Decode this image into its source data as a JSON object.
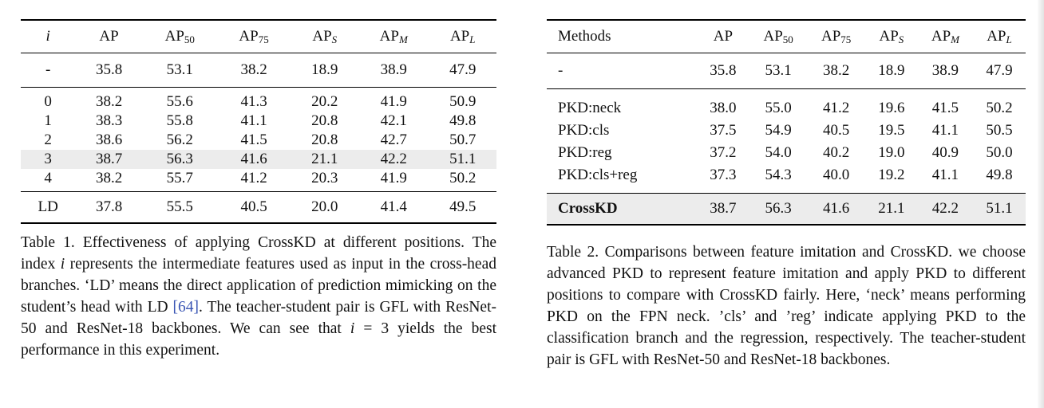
{
  "table1": {
    "headers": {
      "index": "i",
      "ap": "AP",
      "ap50": {
        "base": "AP",
        "sub": "50"
      },
      "ap75": {
        "base": "AP",
        "sub": "75"
      },
      "aps": {
        "base": "AP",
        "sub": "S"
      },
      "apm": {
        "base": "AP",
        "sub": "M"
      },
      "apl": {
        "base": "AP",
        "sub": "L"
      }
    },
    "baseline": [
      "-",
      "35.8",
      "53.1",
      "38.2",
      "18.9",
      "38.9",
      "47.9"
    ],
    "rows": [
      [
        "0",
        "38.2",
        "55.6",
        "41.3",
        "20.2",
        "41.9",
        "50.9"
      ],
      [
        "1",
        "38.3",
        "55.8",
        "41.1",
        "20.8",
        "42.1",
        "49.8"
      ],
      [
        "2",
        "38.6",
        "56.2",
        "41.5",
        "20.8",
        "42.7",
        "50.7"
      ],
      [
        "3",
        "38.7",
        "56.3",
        "41.6",
        "21.1",
        "42.2",
        "51.1"
      ],
      [
        "4",
        "38.2",
        "55.7",
        "41.2",
        "20.3",
        "41.9",
        "50.2"
      ]
    ],
    "highlight_row_color": "#ececec",
    "footer": [
      "LD",
      "37.8",
      "55.5",
      "40.5",
      "20.0",
      "41.4",
      "49.5"
    ],
    "caption": {
      "part1": "Table 1. Effectiveness of applying CrossKD at different positions. The index ",
      "var1": "i",
      "part2": " represents the intermediate features used as input in the cross-head branches. ‘LD’ means the direct application of prediction mimicking on the student’s head with LD ",
      "ref": "[64]",
      "part3": ". The teacher-student pair is GFL with ResNet-50 and ResNet-18 backbones. We can see that ",
      "var2": "i",
      "part4": " = 3 yields the best performance in this experiment."
    }
  },
  "table2": {
    "headers": {
      "methods": "Methods",
      "ap": "AP",
      "ap50": {
        "base": "AP",
        "sub": "50"
      },
      "ap75": {
        "base": "AP",
        "sub": "75"
      },
      "aps": {
        "base": "AP",
        "sub": "S"
      },
      "apm": {
        "base": "AP",
        "sub": "M"
      },
      "apl": {
        "base": "AP",
        "sub": "L"
      }
    },
    "baseline": [
      "-",
      "35.8",
      "53.1",
      "38.2",
      "18.9",
      "38.9",
      "47.9"
    ],
    "rows": [
      [
        "PKD:neck",
        "38.0",
        "55.0",
        "41.2",
        "19.6",
        "41.5",
        "50.2"
      ],
      [
        "PKD:cls",
        "37.5",
        "54.9",
        "40.5",
        "19.5",
        "41.1",
        "50.5"
      ],
      [
        "PKD:reg",
        "37.2",
        "54.0",
        "40.2",
        "19.0",
        "40.9",
        "50.0"
      ],
      [
        "PKD:cls+reg",
        "37.3",
        "54.3",
        "40.0",
        "19.2",
        "41.1",
        "49.8"
      ]
    ],
    "footer": [
      "CrossKD",
      "38.7",
      "56.3",
      "41.6",
      "21.1",
      "42.2",
      "51.1"
    ],
    "caption": "Table 2. Comparisons between feature imitation and CrossKD. we choose advanced PKD to represent feature imitation and apply PKD to different positions to compare with CrossKD fairly. Here, ‘neck’ means performing PKD on the FPN neck. ’cls’ and ’reg’ indicate applying PKD to the classification branch and the regression, respectively. The teacher-student pair is GFL with ResNet-50 and ResNet-18 backbones."
  }
}
